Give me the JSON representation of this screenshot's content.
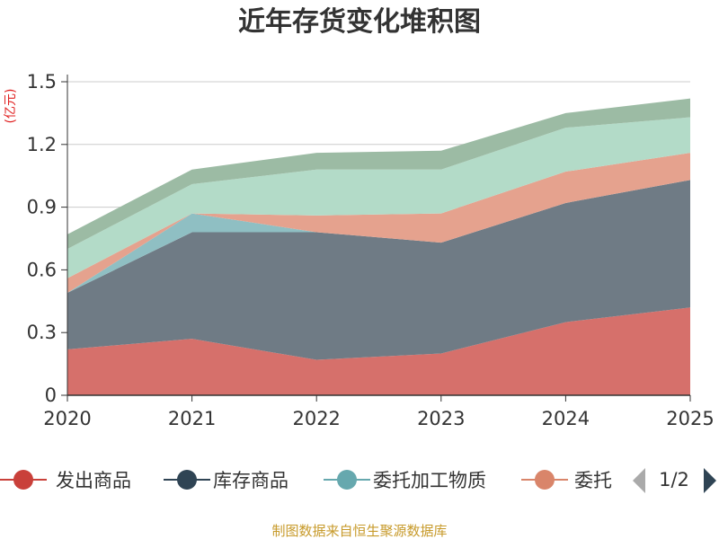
{
  "chart_data": {
    "type": "area",
    "stacked": true,
    "title": "近年存货变化堆积图",
    "ylabel": "(亿元)",
    "xlabel": "",
    "categories": [
      "2020",
      "2021",
      "2022",
      "2023",
      "2024",
      "2025"
    ],
    "ylim": [
      0,
      1.5
    ],
    "yticks": [
      "0",
      "0.3",
      "0.6",
      "0.9",
      "1.2",
      "1.5"
    ],
    "series": [
      {
        "name": "发出商品",
        "color": "#d6706b",
        "values": [
          0.22,
          0.27,
          0.17,
          0.2,
          0.35,
          0.42
        ]
      },
      {
        "name": "库存商品",
        "color": "#6f7b85",
        "values": [
          0.27,
          0.51,
          0.61,
          0.53,
          0.57,
          0.61
        ]
      },
      {
        "name": "委托加工物质",
        "color": "#8fbfc3",
        "values": [
          0.0,
          0.09,
          0.0,
          0.0,
          0.0,
          0.0
        ]
      },
      {
        "name": "委托",
        "color": "#e5a28e",
        "values": [
          0.07,
          0.0,
          0.08,
          0.14,
          0.15,
          0.13
        ]
      },
      {
        "name": "",
        "color": "#b3dbc8",
        "values": [
          0.14,
          0.14,
          0.22,
          0.21,
          0.21,
          0.17
        ]
      },
      {
        "name": "",
        "color": "#9cbba4",
        "values": [
          0.07,
          0.07,
          0.08,
          0.09,
          0.07,
          0.09
        ]
      }
    ],
    "legend_items": [
      {
        "name": "发出商品",
        "color": "#c9403a"
      },
      {
        "name": "库存商品",
        "color": "#2f4454"
      },
      {
        "name": "委托加工物质",
        "color": "#66a8ae"
      },
      {
        "name": "委托",
        "color": "#d9856a"
      }
    ],
    "legend_position": "bottom",
    "grid": true
  },
  "legend_pager": {
    "page_text": "1/2"
  },
  "footer": {
    "source": "制图数据来自恒生聚源数据库"
  },
  "colors": {
    "axis": "#333333",
    "grid": "#cccccc",
    "title": "#333333",
    "ylabel": "#e02020",
    "footer": "#c79a2a"
  }
}
